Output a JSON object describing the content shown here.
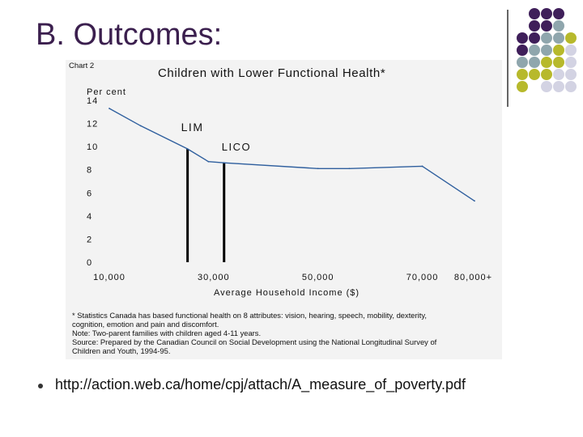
{
  "slide": {
    "title": "B. Outcomes:",
    "bullet_text": "http://action.web.ca/home/cpj/attach/A_measure_of_poverty.pdf"
  },
  "colors": {
    "title": "#3b1f4e",
    "dark_purple": "#3f1f5a",
    "gray_teal": "#8fa6ad",
    "olive_yellow": "#b7b92c",
    "light_lavender": "#d3d3e3",
    "line": "#2f5f9e"
  },
  "chart_data": {
    "type": "line",
    "chart_label": "Chart 2",
    "title": "Children with Lower Functional Health*",
    "ylabel": "Per cent",
    "xlabel": "Average Household Income ($)",
    "ylim": [
      0,
      14
    ],
    "yticks": [
      "0",
      "2",
      "4",
      "6",
      "8",
      "10",
      "12",
      "14"
    ],
    "xticks": [
      "10,000",
      "30,000",
      "50,000",
      "70,000",
      "80,000+"
    ],
    "x": [
      10000,
      16000,
      25000,
      29000,
      32000,
      50000,
      56000,
      70000,
      80000
    ],
    "y": [
      13.3,
      11.8,
      9.8,
      8.7,
      8.6,
      8.1,
      8.1,
      8.3,
      5.3
    ],
    "thresholds": [
      {
        "label": "LIM",
        "x": 25000
      },
      {
        "label": "LICO",
        "x": 32000
      }
    ],
    "footnotes": [
      "* Statistics Canada has based functional health on 8 attributes: vision, hearing, speech, mobility, dexterity,",
      "cognition, emotion and pain and discomfort.",
      "Note: Two-parent families with children aged 4-11 years.",
      "Source: Prepared by the Canadian Council on Social Development using the National Longitudinal Survey of",
      "Children and Youth, 1994-95."
    ]
  }
}
